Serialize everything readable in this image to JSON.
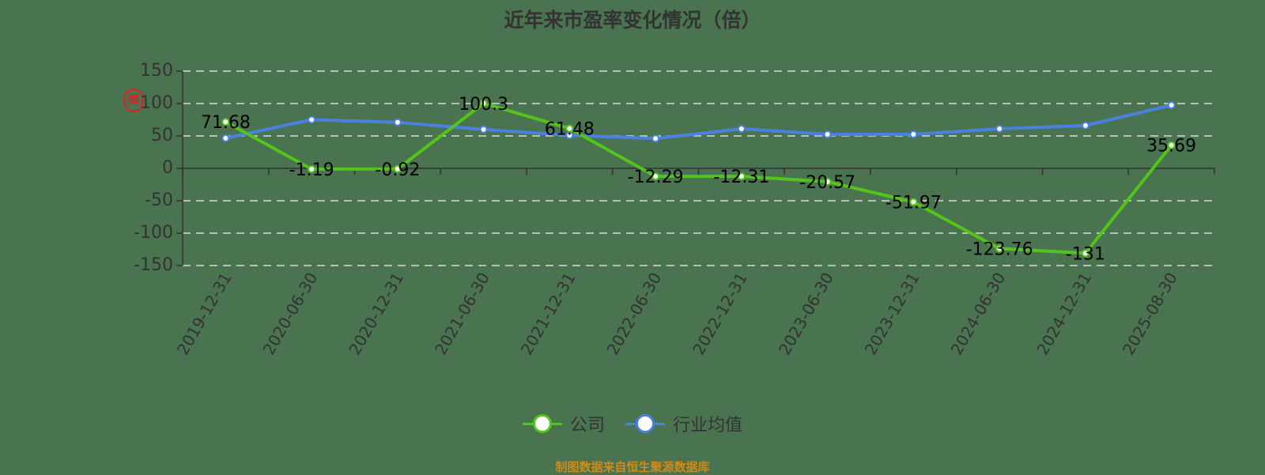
{
  "title": "近年来市盈率变化情况（倍）",
  "watermark": "恒",
  "source": "制图数据来自恒生聚源数据库",
  "legend": [
    {
      "label": "公司",
      "color": "#52c41a"
    },
    {
      "label": "行业均值",
      "color": "#4a80e0"
    }
  ],
  "chart_data": {
    "type": "line",
    "title": "近年来市盈率变化情况（倍）",
    "xlabel": "",
    "ylabel": "",
    "ylim": [
      -150,
      150
    ],
    "yticks": [
      150,
      100,
      50,
      0,
      -50,
      -100,
      -150
    ],
    "grid": true,
    "legend_position": "bottom",
    "categories": [
      "2019-12-31",
      "2020-06-30",
      "2020-12-31",
      "2021-06-30",
      "2021-12-31",
      "2022-06-30",
      "2022-12-31",
      "2023-06-30",
      "2023-12-31",
      "2024-06-30",
      "2024-12-31",
      "2025-08-30"
    ],
    "series": [
      {
        "name": "公司",
        "color": "#52c41a",
        "values": [
          71.68,
          -1.19,
          -0.92,
          100.3,
          61.48,
          -12.29,
          -12.31,
          -20.57,
          -51.97,
          -123.76,
          -131,
          35.69
        ],
        "labels": [
          "71.68",
          "-1.19",
          "-0.92",
          "100.3",
          "61.48",
          "-12.29",
          "-12.31",
          "-20.57",
          "-51.97",
          "-123.76",
          "-131",
          "35.69"
        ]
      },
      {
        "name": "行业均值",
        "color": "#4a80e0",
        "values": [
          46.5,
          75,
          71,
          60,
          51,
          46,
          61,
          52.5,
          52.5,
          61,
          66,
          97.5
        ]
      }
    ]
  }
}
